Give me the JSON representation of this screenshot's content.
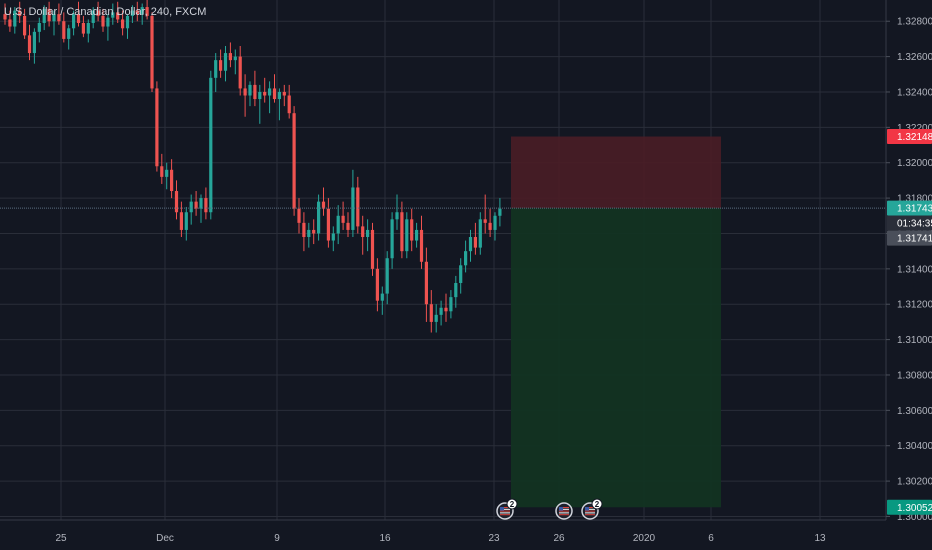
{
  "header": {
    "title": "U.S. Dollar / Canadian Dollar, 240, FXCM"
  },
  "colors": {
    "background": "#131722",
    "grid": "#2a2e39",
    "up": "#26a69a",
    "down": "#ef5350",
    "stop_zone": "#4a1d26",
    "target_zone": "#123322",
    "stop_label": "#f23645",
    "target_label": "#089981",
    "current_label": "#26a69a",
    "previous_label": "#4a4f5a",
    "countdown_label": "#2a2e39"
  },
  "chart_data": {
    "type": "candlestick",
    "y_axis": {
      "min": 1.2998,
      "max": 1.3292,
      "ticks": [
        "1.32800",
        "1.32600",
        "1.32400",
        "1.32200",
        "1.32000",
        "1.31800",
        "1.31600",
        "1.31400",
        "1.31200",
        "1.31000",
        "1.30800",
        "1.30600",
        "1.30400",
        "1.30200",
        "1.30000"
      ]
    },
    "x_axis": {
      "labels": [
        "25",
        "Dec",
        "9",
        "16",
        "23",
        "26",
        "2020",
        "6",
        "13"
      ]
    },
    "grid": true,
    "price_labels": {
      "stop_loss": "1.32148",
      "current": "1.31743",
      "countdown": "01:34:35",
      "previous": "1.31741",
      "take_profit": "1.30052"
    },
    "position": {
      "type": "short",
      "entry": 1.31743,
      "stop_loss": 1.32148,
      "take_profit": 1.30052
    },
    "events": [
      {
        "flag": "us-flag-icon",
        "count": "2"
      },
      {
        "flag": "us-flag-icon",
        "count": ""
      },
      {
        "flag": "us-flag-icon",
        "count": "2"
      }
    ],
    "candles": [
      [
        1.3284,
        1.329,
        1.3278,
        1.3281
      ],
      [
        1.3281,
        1.3286,
        1.3274,
        1.3277
      ],
      [
        1.3277,
        1.3288,
        1.3273,
        1.3286
      ],
      [
        1.3286,
        1.3291,
        1.3279,
        1.3283
      ],
      [
        1.3283,
        1.3287,
        1.327,
        1.3272
      ],
      [
        1.3272,
        1.3278,
        1.3258,
        1.3262
      ],
      [
        1.3262,
        1.3276,
        1.3256,
        1.3274
      ],
      [
        1.3274,
        1.3282,
        1.3268,
        1.3279
      ],
      [
        1.3279,
        1.3289,
        1.3275,
        1.3287
      ],
      [
        1.3287,
        1.3291,
        1.3277,
        1.328
      ],
      [
        1.328,
        1.3286,
        1.3272,
        1.3284
      ],
      [
        1.3284,
        1.329,
        1.3278,
        1.328
      ],
      [
        1.328,
        1.3285,
        1.3268,
        1.327
      ],
      [
        1.327,
        1.3278,
        1.3264,
        1.3276
      ],
      [
        1.3276,
        1.3286,
        1.3272,
        1.3284
      ],
      [
        1.3284,
        1.3291,
        1.3277,
        1.3279
      ],
      [
        1.3279,
        1.3283,
        1.3271,
        1.3273
      ],
      [
        1.3273,
        1.3281,
        1.3268,
        1.3279
      ],
      [
        1.3279,
        1.3288,
        1.3276,
        1.3286
      ],
      [
        1.3286,
        1.3291,
        1.328,
        1.3283
      ],
      [
        1.3283,
        1.3287,
        1.3274,
        1.3277
      ],
      [
        1.3277,
        1.3284,
        1.3269,
        1.3282
      ],
      [
        1.3282,
        1.329,
        1.3278,
        1.3285
      ],
      [
        1.3285,
        1.3291,
        1.3279,
        1.3281
      ],
      [
        1.3281,
        1.3286,
        1.3272,
        1.3276
      ],
      [
        1.3276,
        1.3284,
        1.327,
        1.3283
      ],
      [
        1.3283,
        1.3289,
        1.3279,
        1.3286
      ],
      [
        1.3286,
        1.3291,
        1.328,
        1.3284
      ],
      [
        1.3284,
        1.329,
        1.3278,
        1.3288
      ],
      [
        1.3288,
        1.3292,
        1.3281,
        1.3283
      ],
      [
        1.3283,
        1.3285,
        1.324,
        1.3242
      ],
      [
        1.3242,
        1.3246,
        1.3195,
        1.3198
      ],
      [
        1.3198,
        1.3205,
        1.3188,
        1.3192
      ],
      [
        1.3192,
        1.32,
        1.3185,
        1.3196
      ],
      [
        1.3196,
        1.3202,
        1.318,
        1.3184
      ],
      [
        1.3184,
        1.319,
        1.3168,
        1.3172
      ],
      [
        1.3172,
        1.3178,
        1.3158,
        1.3162
      ],
      [
        1.3162,
        1.3175,
        1.3156,
        1.3172
      ],
      [
        1.3172,
        1.3182,
        1.3165,
        1.3178
      ],
      [
        1.3178,
        1.3184,
        1.317,
        1.3174
      ],
      [
        1.3174,
        1.3182,
        1.3166,
        1.318
      ],
      [
        1.318,
        1.3186,
        1.3168,
        1.3172
      ],
      [
        1.3172,
        1.3252,
        1.3168,
        1.3248
      ],
      [
        1.3248,
        1.3262,
        1.324,
        1.3258
      ],
      [
        1.3258,
        1.3264,
        1.3248,
        1.3252
      ],
      [
        1.3252,
        1.3266,
        1.3246,
        1.3262
      ],
      [
        1.3262,
        1.3268,
        1.3254,
        1.3258
      ],
      [
        1.3258,
        1.3264,
        1.325,
        1.326
      ],
      [
        1.326,
        1.3266,
        1.3238,
        1.3242
      ],
      [
        1.3242,
        1.325,
        1.3226,
        1.3238
      ],
      [
        1.3238,
        1.3246,
        1.3232,
        1.3244
      ],
      [
        1.3244,
        1.3252,
        1.3232,
        1.3236
      ],
      [
        1.3236,
        1.3244,
        1.3222,
        1.324
      ],
      [
        1.324,
        1.3248,
        1.3234,
        1.3238
      ],
      [
        1.3238,
        1.3246,
        1.3228,
        1.3242
      ],
      [
        1.3242,
        1.325,
        1.3234,
        1.3236
      ],
      [
        1.3236,
        1.3242,
        1.3224,
        1.324
      ],
      [
        1.324,
        1.3244,
        1.3232,
        1.3238
      ],
      [
        1.3238,
        1.3244,
        1.3225,
        1.3228
      ],
      [
        1.3228,
        1.3232,
        1.317,
        1.3174
      ],
      [
        1.3174,
        1.318,
        1.316,
        1.3166
      ],
      [
        1.3166,
        1.3172,
        1.315,
        1.3158
      ],
      [
        1.3158,
        1.3166,
        1.3152,
        1.3162
      ],
      [
        1.3162,
        1.3168,
        1.3154,
        1.316
      ],
      [
        1.316,
        1.3182,
        1.3156,
        1.3178
      ],
      [
        1.3178,
        1.3186,
        1.317,
        1.3174
      ],
      [
        1.3174,
        1.318,
        1.3152,
        1.3156
      ],
      [
        1.3156,
        1.3164,
        1.315,
        1.316
      ],
      [
        1.316,
        1.3176,
        1.3154,
        1.317
      ],
      [
        1.317,
        1.3178,
        1.3162,
        1.3166
      ],
      [
        1.3166,
        1.3172,
        1.3158,
        1.3162
      ],
      [
        1.3162,
        1.3196,
        1.3158,
        1.3186
      ],
      [
        1.3186,
        1.3192,
        1.316,
        1.3164
      ],
      [
        1.3164,
        1.317,
        1.3148,
        1.3158
      ],
      [
        1.3158,
        1.3168,
        1.315,
        1.3162
      ],
      [
        1.3162,
        1.3166,
        1.3136,
        1.314
      ],
      [
        1.314,
        1.3146,
        1.3116,
        1.3122
      ],
      [
        1.3122,
        1.313,
        1.3114,
        1.3126
      ],
      [
        1.3126,
        1.315,
        1.312,
        1.3146
      ],
      [
        1.3146,
        1.3172,
        1.314,
        1.3168
      ],
      [
        1.3168,
        1.3182,
        1.3162,
        1.3172
      ],
      [
        1.3172,
        1.3178,
        1.3146,
        1.315
      ],
      [
        1.315,
        1.3172,
        1.3146,
        1.3168
      ],
      [
        1.3168,
        1.3174,
        1.315,
        1.3156
      ],
      [
        1.3156,
        1.3166,
        1.3152,
        1.3162
      ],
      [
        1.3162,
        1.317,
        1.314,
        1.3144
      ],
      [
        1.3144,
        1.3152,
        1.311,
        1.312
      ],
      [
        1.312,
        1.3128,
        1.3104,
        1.311
      ],
      [
        1.311,
        1.312,
        1.3104,
        1.3114
      ],
      [
        1.3114,
        1.3122,
        1.3108,
        1.3118
      ],
      [
        1.3118,
        1.3126,
        1.311,
        1.3116
      ],
      [
        1.3116,
        1.3128,
        1.3112,
        1.3124
      ],
      [
        1.3124,
        1.3136,
        1.3118,
        1.3132
      ],
      [
        1.3132,
        1.3146,
        1.3126,
        1.3142
      ],
      [
        1.3142,
        1.3156,
        1.3138,
        1.315
      ],
      [
        1.315,
        1.3162,
        1.3144,
        1.3158
      ],
      [
        1.3158,
        1.3166,
        1.3148,
        1.3152
      ],
      [
        1.3152,
        1.3172,
        1.3148,
        1.3168
      ],
      [
        1.3168,
        1.3182,
        1.316,
        1.3166
      ],
      [
        1.3166,
        1.3174,
        1.3158,
        1.3162
      ],
      [
        1.3162,
        1.3172,
        1.3156,
        1.317
      ],
      [
        1.317,
        1.318,
        1.3164,
        1.3174
      ]
    ]
  }
}
